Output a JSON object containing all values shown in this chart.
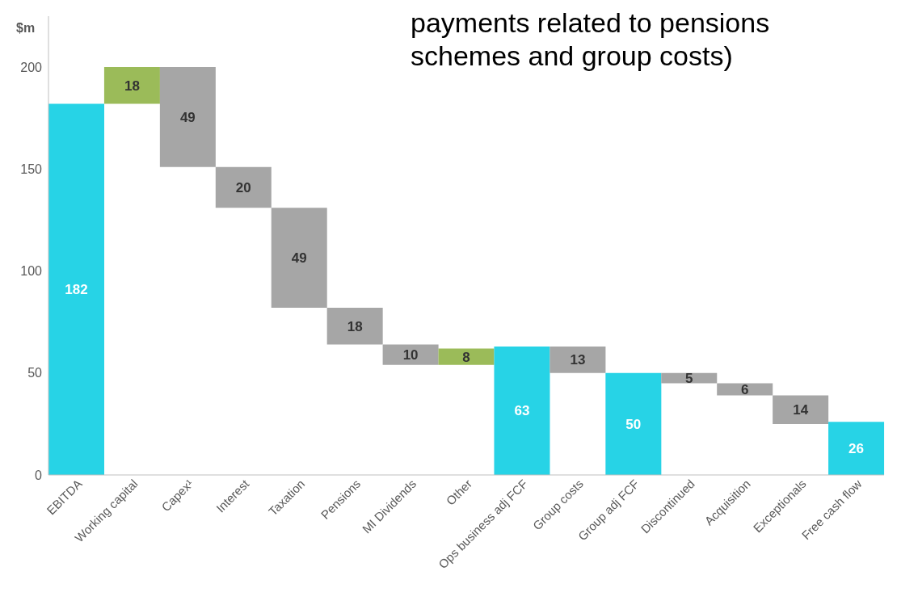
{
  "chart_data": {
    "type": "bar",
    "ylabel": "$m",
    "categories": [
      "EBITDA",
      "Working capital",
      "Capex¹",
      "Interest",
      "Taxation",
      "Pensions",
      "MI Dividends",
      "Other",
      "Ops business adj FCF",
      "Group costs",
      "Group adj FCF",
      "Discontinued",
      "Acquisition",
      "Exceptionals",
      "Free cash flow"
    ],
    "values": [
      182,
      18,
      49,
      20,
      49,
      18,
      10,
      8,
      63,
      13,
      50,
      5,
      6,
      14,
      26
    ],
    "base": [
      0,
      182,
      151,
      131,
      82,
      64,
      54,
      54,
      0,
      50,
      0,
      45,
      39,
      25,
      0
    ],
    "colors": [
      "#27d3e6",
      "#9bbb59",
      "#a6a6a6",
      "#a6a6a6",
      "#a6a6a6",
      "#a6a6a6",
      "#a6a6a6",
      "#9bbb59",
      "#27d3e6",
      "#a6a6a6",
      "#27d3e6",
      "#a6a6a6",
      "#a6a6a6",
      "#a6a6a6",
      "#27d3e6"
    ],
    "ylim": [
      0,
      225
    ],
    "yticks": [
      0,
      50,
      100,
      150,
      200
    ],
    "data_labels": true,
    "annotations": [
      "payments related to pensions schemes and group costs)"
    ]
  }
}
